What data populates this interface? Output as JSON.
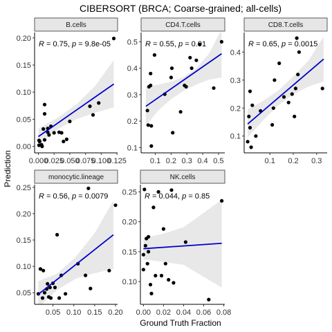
{
  "title": "CIBERSORT (BRCA; Coarse-grained; all-cells)",
  "xlabel": "Ground Truth Fraction",
  "ylabel": "Prediction",
  "colors": {
    "regression_line": "#0000cc",
    "confidence_band": "#d9d9d9",
    "point": "#000000",
    "strip_fill": "#e6e6e6",
    "strip_border": "#333333",
    "axis": "#000000"
  },
  "chart_data": [
    {
      "type": "scatter",
      "panel": "B.cells",
      "annotation": "R = 0.75, p = 9.8e-05",
      "xlim": [
        -0.006,
        0.126
      ],
      "ylim": [
        -0.012,
        0.21
      ],
      "xticks": [
        0.0,
        0.025,
        0.05,
        0.075,
        0.1,
        0.125
      ],
      "xtick_labels": [
        "0.000",
        "0.025",
        "0.050",
        "0.075",
        "0.100",
        "0.125"
      ],
      "yticks": [
        0.0,
        0.05,
        0.1,
        0.15,
        0.2
      ],
      "ytick_labels": [
        "0.00",
        "0.05",
        "0.10",
        "0.15",
        "0.20"
      ],
      "fit": {
        "x": [
          0.0,
          0.12
        ],
        "y": [
          0.018,
          0.115
        ]
      },
      "band": {
        "x": [
          0.0,
          0.03,
          0.06,
          0.09,
          0.12
        ],
        "lower": [
          0.003,
          0.031,
          0.05,
          0.062,
          0.072
        ],
        "upper": [
          0.033,
          0.052,
          0.077,
          0.111,
          0.159
        ]
      },
      "points": [
        {
          "x": 0.001,
          "y": 0.002
        },
        {
          "x": 0.001,
          "y": 0.011
        },
        {
          "x": 0.002,
          "y": 0.009
        },
        {
          "x": 0.005,
          "y": 0.003
        },
        {
          "x": 0.006,
          "y": 0.0
        },
        {
          "x": 0.01,
          "y": 0.012
        },
        {
          "x": 0.008,
          "y": 0.032
        },
        {
          "x": 0.01,
          "y": 0.077
        },
        {
          "x": 0.01,
          "y": 0.06
        },
        {
          "x": 0.015,
          "y": 0.026
        },
        {
          "x": 0.015,
          "y": 0.033
        },
        {
          "x": 0.017,
          "y": 0.021
        },
        {
          "x": 0.02,
          "y": 0.037
        },
        {
          "x": 0.025,
          "y": 0.025
        },
        {
          "x": 0.033,
          "y": 0.026
        },
        {
          "x": 0.037,
          "y": 0.025
        },
        {
          "x": 0.04,
          "y": 0.009
        },
        {
          "x": 0.045,
          "y": 0.013
        },
        {
          "x": 0.05,
          "y": 0.046
        },
        {
          "x": 0.082,
          "y": 0.074
        },
        {
          "x": 0.087,
          "y": 0.058
        },
        {
          "x": 0.096,
          "y": 0.08
        },
        {
          "x": 0.12,
          "y": 0.199
        }
      ]
    },
    {
      "type": "scatter",
      "panel": "CD4.T.cells",
      "annotation": "R = 0.55, p = 0.01",
      "xlim": [
        0.01,
        0.54
      ],
      "ylim": [
        0.08,
        0.535
      ],
      "xticks": [
        0.1,
        0.2,
        0.3,
        0.4,
        0.5
      ],
      "xtick_labels": [
        "0.1",
        "0.2",
        "0.3",
        "0.4",
        "0.5"
      ],
      "yticks": [
        0.1,
        0.2,
        0.3,
        0.4,
        0.5
      ],
      "ytick_labels": [
        "0.1",
        "0.2",
        "0.3",
        "0.4",
        "0.5"
      ],
      "fit": {
        "x": [
          0.04,
          0.52
        ],
        "y": [
          0.256,
          0.455
        ]
      },
      "band": {
        "x": [
          0.04,
          0.12,
          0.2,
          0.28,
          0.36,
          0.44,
          0.52
        ],
        "lower": [
          0.182,
          0.241,
          0.283,
          0.315,
          0.338,
          0.357,
          0.365
        ],
        "upper": [
          0.33,
          0.338,
          0.349,
          0.367,
          0.4,
          0.455,
          0.548
        ]
      },
      "points": [
        {
          "x": 0.05,
          "y": 0.24
        },
        {
          "x": 0.055,
          "y": 0.185
        },
        {
          "x": 0.06,
          "y": 0.33
        },
        {
          "x": 0.07,
          "y": 0.335
        },
        {
          "x": 0.07,
          "y": 0.38
        },
        {
          "x": 0.075,
          "y": 0.182
        },
        {
          "x": 0.075,
          "y": 0.106
        },
        {
          "x": 0.095,
          "y": 0.45
        },
        {
          "x": 0.16,
          "y": 0.302
        },
        {
          "x": 0.2,
          "y": 0.365
        },
        {
          "x": 0.205,
          "y": 0.4
        },
        {
          "x": 0.21,
          "y": 0.156
        },
        {
          "x": 0.26,
          "y": 0.235
        },
        {
          "x": 0.285,
          "y": 0.335
        },
        {
          "x": 0.295,
          "y": 0.33
        },
        {
          "x": 0.32,
          "y": 0.44
        },
        {
          "x": 0.33,
          "y": 0.4
        },
        {
          "x": 0.36,
          "y": 0.43
        },
        {
          "x": 0.38,
          "y": 0.49
        },
        {
          "x": 0.47,
          "y": 0.325
        },
        {
          "x": 0.52,
          "y": 0.5
        }
      ]
    },
    {
      "type": "scatter",
      "panel": "CD8.T.cells",
      "annotation": "R = 0.65, p = 0.0015",
      "xlim": [
        -0.01,
        0.345
      ],
      "ylim": [
        0.04,
        0.47
      ],
      "xticks": [
        0.1,
        0.2,
        0.3
      ],
      "xtick_labels": [
        "0.1",
        "0.2",
        "0.3"
      ],
      "yticks": [
        0.1,
        0.2,
        0.3,
        0.4
      ],
      "ytick_labels": [
        "0.1",
        "0.2",
        "0.3",
        "0.4"
      ],
      "fit": {
        "x": [
          0.005,
          0.33
        ],
        "y": [
          0.143,
          0.375
        ]
      },
      "band": {
        "x": [
          0.005,
          0.07,
          0.135,
          0.2,
          0.265,
          0.33
        ],
        "lower": [
          0.095,
          0.155,
          0.209,
          0.249,
          0.277,
          0.295
        ],
        "upper": [
          0.195,
          0.225,
          0.262,
          0.313,
          0.37,
          0.455
        ]
      },
      "points": [
        {
          "x": 0.005,
          "y": 0.08
        },
        {
          "x": 0.01,
          "y": 0.17
        },
        {
          "x": 0.015,
          "y": 0.26
        },
        {
          "x": 0.015,
          "y": 0.13
        },
        {
          "x": 0.02,
          "y": 0.06
        },
        {
          "x": 0.025,
          "y": 0.21
        },
        {
          "x": 0.04,
          "y": 0.1
        },
        {
          "x": 0.06,
          "y": 0.19
        },
        {
          "x": 0.11,
          "y": 0.14
        },
        {
          "x": 0.115,
          "y": 0.2
        },
        {
          "x": 0.12,
          "y": 0.3
        },
        {
          "x": 0.14,
          "y": 0.36
        },
        {
          "x": 0.16,
          "y": 0.24
        },
        {
          "x": 0.18,
          "y": 0.22
        },
        {
          "x": 0.195,
          "y": 0.25
        },
        {
          "x": 0.205,
          "y": 0.17
        },
        {
          "x": 0.21,
          "y": 0.27
        },
        {
          "x": 0.215,
          "y": 0.45
        },
        {
          "x": 0.22,
          "y": 0.32
        },
        {
          "x": 0.225,
          "y": 0.4
        },
        {
          "x": 0.325,
          "y": 0.27
        }
      ]
    },
    {
      "type": "scatter",
      "panel": "monocytic.lineage",
      "annotation": "R = 0.56, p = 0.0079",
      "xlim": [
        0.006,
        0.205
      ],
      "ylim": [
        0.028,
        0.255
      ],
      "xticks": [
        0.05,
        0.1,
        0.15,
        0.2
      ],
      "xtick_labels": [
        "0.05",
        "0.10",
        "0.15",
        "0.20"
      ],
      "yticks": [
        0.05,
        0.1,
        0.15,
        0.2,
        0.25
      ],
      "ytick_labels": [
        "0.05",
        "0.10",
        "0.15",
        "0.20",
        "0.25"
      ],
      "fit": {
        "x": [
          0.015,
          0.195
        ],
        "y": [
          0.047,
          0.16
        ]
      },
      "band": {
        "x": [
          0.015,
          0.06,
          0.105,
          0.15,
          0.195
        ],
        "lower": [
          0.022,
          0.055,
          0.077,
          0.087,
          0.095
        ],
        "upper": [
          0.072,
          0.086,
          0.118,
          0.163,
          0.225
        ]
      },
      "points": [
        {
          "x": 0.015,
          "y": 0.048
        },
        {
          "x": 0.02,
          "y": 0.095
        },
        {
          "x": 0.025,
          "y": 0.04
        },
        {
          "x": 0.027,
          "y": 0.092
        },
        {
          "x": 0.03,
          "y": 0.05
        },
        {
          "x": 0.035,
          "y": 0.057
        },
        {
          "x": 0.037,
          "y": 0.067
        },
        {
          "x": 0.04,
          "y": 0.042
        },
        {
          "x": 0.043,
          "y": 0.06
        },
        {
          "x": 0.045,
          "y": 0.04
        },
        {
          "x": 0.05,
          "y": 0.068
        },
        {
          "x": 0.055,
          "y": 0.06
        },
        {
          "x": 0.06,
          "y": 0.16
        },
        {
          "x": 0.065,
          "y": 0.04
        },
        {
          "x": 0.07,
          "y": 0.083
        },
        {
          "x": 0.08,
          "y": 0.048
        },
        {
          "x": 0.11,
          "y": 0.105
        },
        {
          "x": 0.128,
          "y": 0.083
        },
        {
          "x": 0.135,
          "y": 0.248
        },
        {
          "x": 0.14,
          "y": 0.058
        },
        {
          "x": 0.185,
          "y": 0.092
        },
        {
          "x": 0.2,
          "y": 0.216
        }
      ]
    },
    {
      "type": "scatter",
      "panel": "NK.cells",
      "annotation": "R = 0.044, p = 0.85",
      "xlim": [
        -0.003,
        0.081
      ],
      "ylim": [
        0.062,
        0.262
      ],
      "xticks": [
        0.0,
        0.02,
        0.04,
        0.06,
        0.08
      ],
      "xtick_labels": [
        "0.00",
        "0.02",
        "0.04",
        "0.06",
        "0.08"
      ],
      "yticks": [
        0.1,
        0.15,
        0.2,
        0.25
      ],
      "ytick_labels": [
        "0.10",
        "0.15",
        "0.20",
        "0.25"
      ],
      "fit": {
        "x": [
          0.0,
          0.078
        ],
        "y": [
          0.155,
          0.164
        ]
      },
      "band": {
        "x": [
          0.0,
          0.02,
          0.04,
          0.06,
          0.078
        ],
        "lower": [
          0.137,
          0.133,
          0.128,
          0.108,
          0.09
        ],
        "upper": [
          0.173,
          0.18,
          0.191,
          0.215,
          0.237
        ]
      },
      "points": [
        {
          "x": 0.0,
          "y": 0.145
        },
        {
          "x": 0.0,
          "y": 0.12
        },
        {
          "x": 0.001,
          "y": 0.254
        },
        {
          "x": 0.002,
          "y": 0.16
        },
        {
          "x": 0.003,
          "y": 0.172
        },
        {
          "x": 0.004,
          "y": 0.13
        },
        {
          "x": 0.005,
          "y": 0.15
        },
        {
          "x": 0.005,
          "y": 0.175
        },
        {
          "x": 0.007,
          "y": 0.095
        },
        {
          "x": 0.008,
          "y": 0.08
        },
        {
          "x": 0.01,
          "y": 0.224
        },
        {
          "x": 0.012,
          "y": 0.11
        },
        {
          "x": 0.015,
          "y": 0.25
        },
        {
          "x": 0.018,
          "y": 0.11
        },
        {
          "x": 0.02,
          "y": 0.188
        },
        {
          "x": 0.022,
          "y": 0.13
        },
        {
          "x": 0.025,
          "y": 0.103
        },
        {
          "x": 0.028,
          "y": 0.253
        },
        {
          "x": 0.03,
          "y": 0.098
        },
        {
          "x": 0.042,
          "y": 0.166
        },
        {
          "x": 0.065,
          "y": 0.07
        },
        {
          "x": 0.078,
          "y": 0.235
        }
      ]
    }
  ]
}
